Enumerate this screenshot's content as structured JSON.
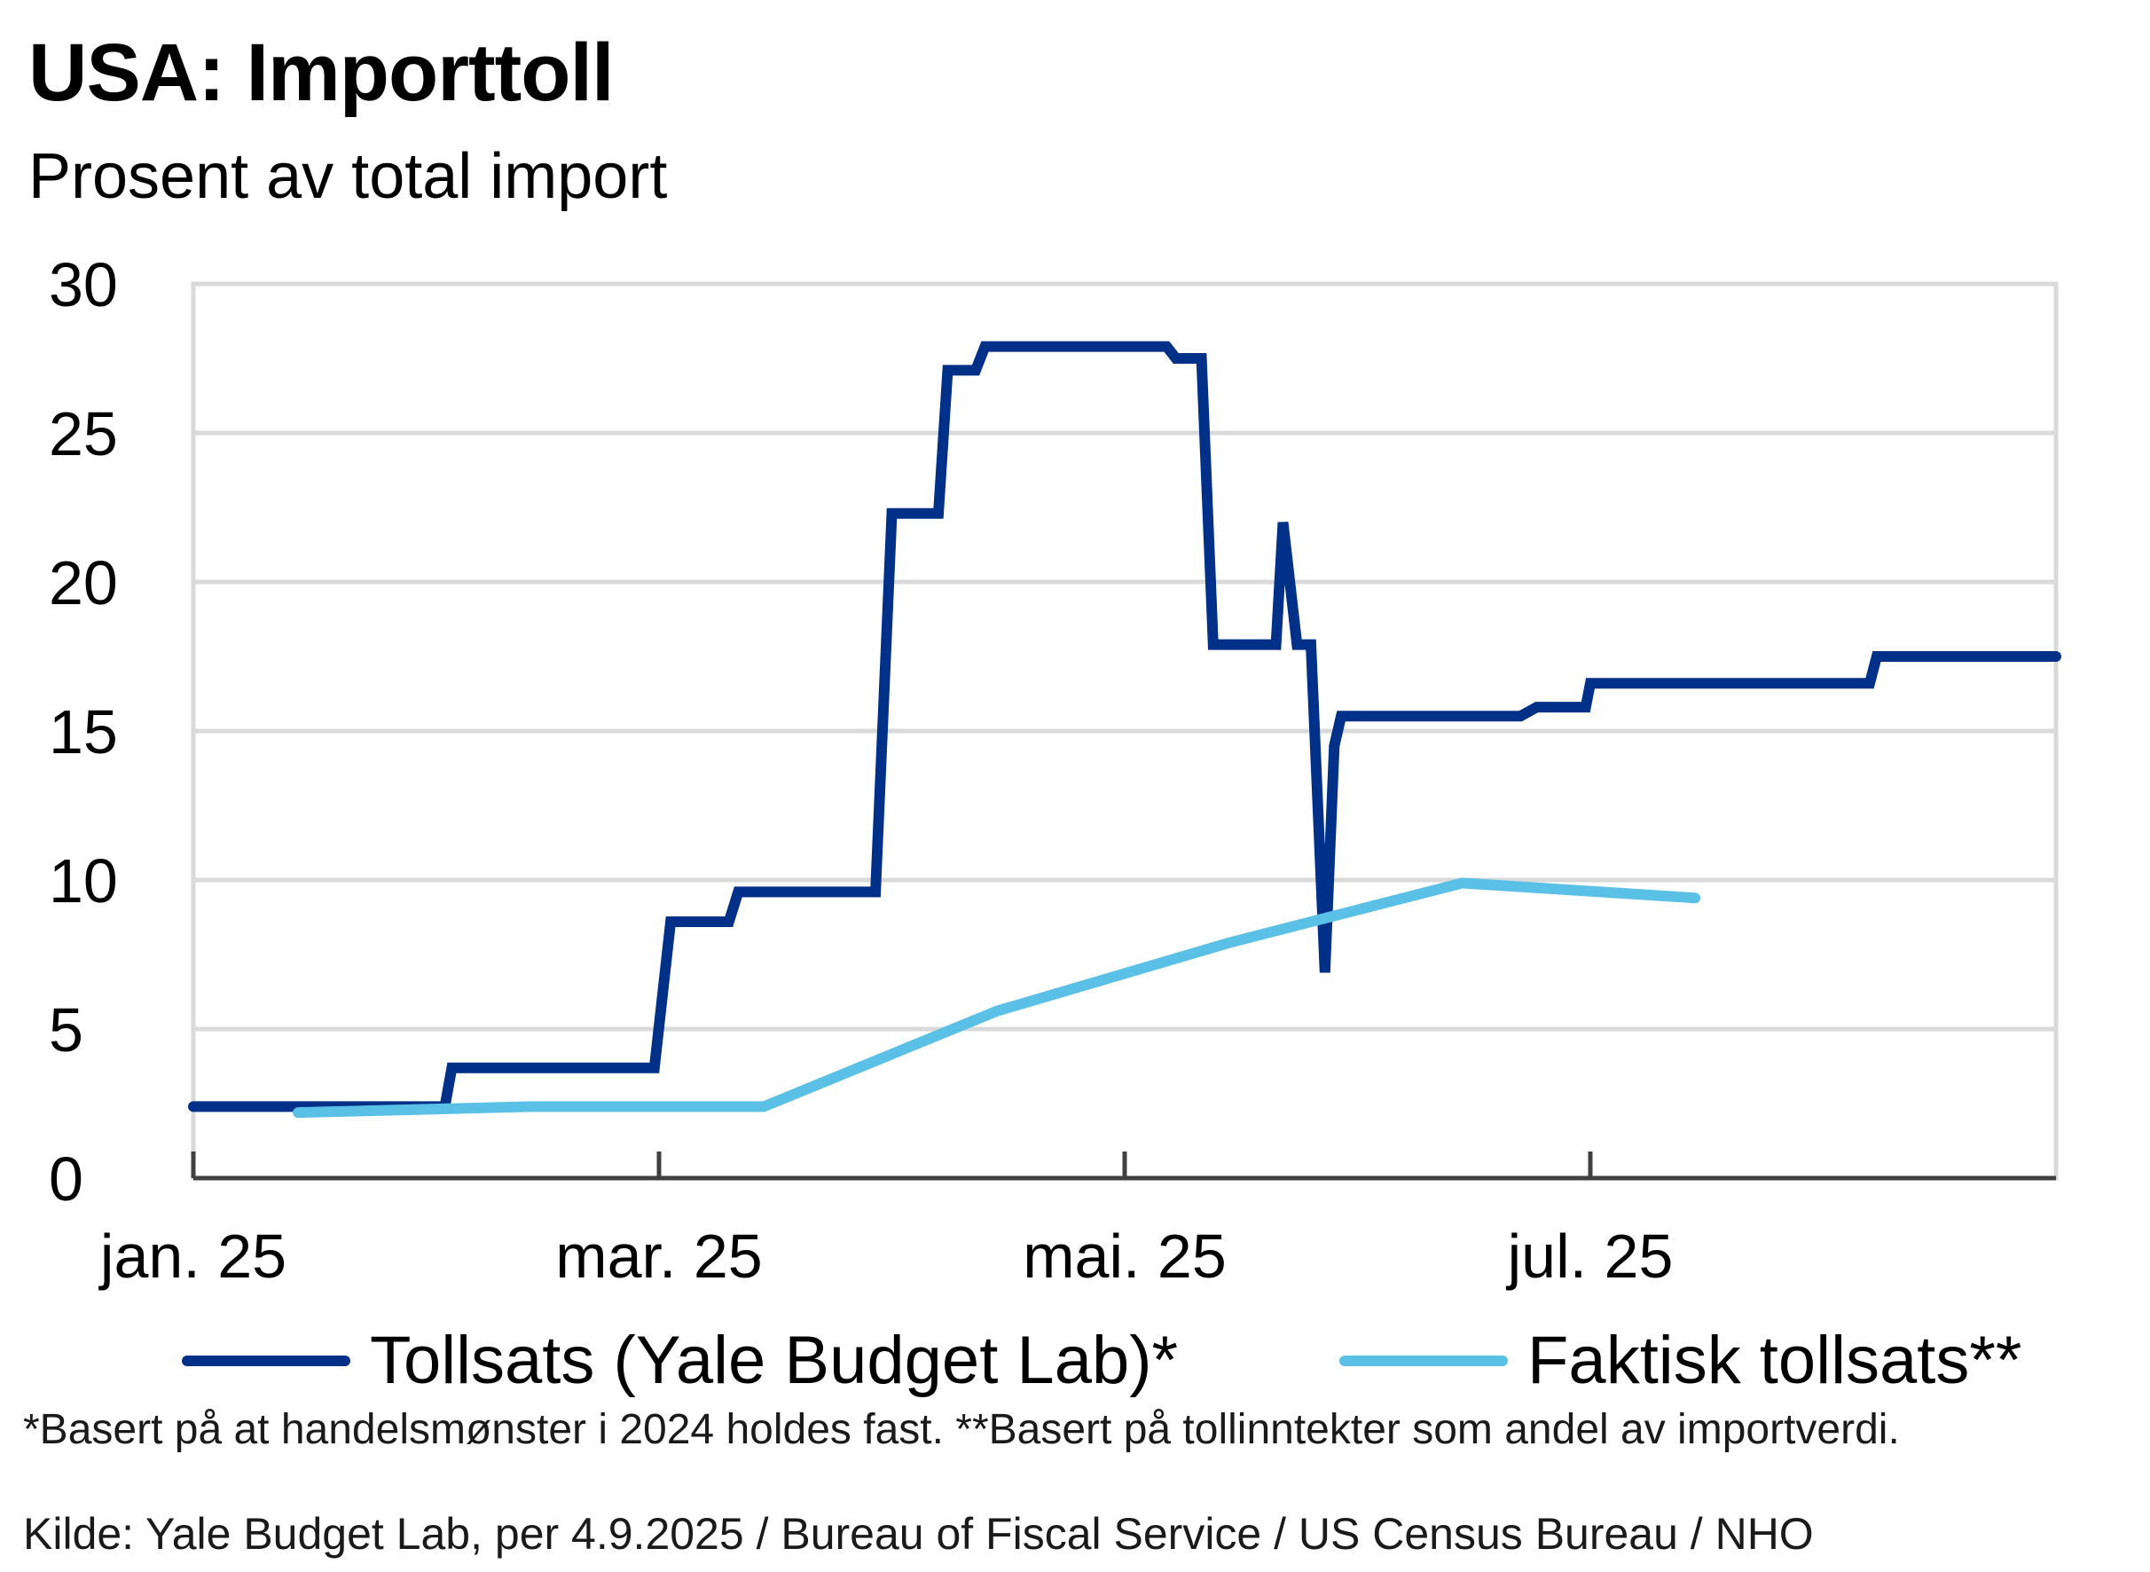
{
  "title": "USA:  Importtoll",
  "subtitle": "Prosent av total import",
  "footnote": "*Basert på at handelsmønster i 2024 holdes fast. **Basert på tollinntekter som andel av importverdi.",
  "source": "Kilde: Yale Budget Lab, per 4.9.2025 / Bureau of Fiscal Service / US Census Bureau / NHO",
  "chart_data": {
    "type": "line",
    "title": "USA:  Importtoll",
    "ylabel": "Prosent av total import",
    "ylim": [
      0,
      30
    ],
    "yticks": [
      "0",
      "5",
      "10",
      "15",
      "20",
      "25",
      "30"
    ],
    "xlim": [
      0,
      8
    ],
    "xticks": [
      {
        "label": "jan. 25",
        "x": 0
      },
      {
        "label": "mar. 25",
        "x": 2
      },
      {
        "label": "mai. 25",
        "x": 4
      },
      {
        "label": "jul. 25",
        "x": 6
      }
    ],
    "grid": true,
    "legend_position": "bottom",
    "series": [
      {
        "name": "Tollsats (Yale Budget Lab)*",
        "color": "#003087",
        "points": [
          [
            0.0,
            2.4
          ],
          [
            1.08,
            2.4
          ],
          [
            1.11,
            3.7
          ],
          [
            1.98,
            3.7
          ],
          [
            2.05,
            8.6
          ],
          [
            2.3,
            8.6
          ],
          [
            2.34,
            9.6
          ],
          [
            2.93,
            9.6
          ],
          [
            3.0,
            22.3
          ],
          [
            3.2,
            22.3
          ],
          [
            3.24,
            27.1
          ],
          [
            3.36,
            27.1
          ],
          [
            3.4,
            27.9
          ],
          [
            4.18,
            27.9
          ],
          [
            4.22,
            27.5
          ],
          [
            4.33,
            27.5
          ],
          [
            4.38,
            17.9
          ],
          [
            4.65,
            17.9
          ],
          [
            4.68,
            22.0
          ],
          [
            4.74,
            17.9
          ],
          [
            4.8,
            17.9
          ],
          [
            4.86,
            6.9
          ],
          [
            4.9,
            14.5
          ],
          [
            4.93,
            15.5
          ],
          [
            5.7,
            15.5
          ],
          [
            5.77,
            15.8
          ],
          [
            5.98,
            15.8
          ],
          [
            6.0,
            16.6
          ],
          [
            7.2,
            16.6
          ],
          [
            7.23,
            17.5
          ],
          [
            8.0,
            17.5
          ]
        ]
      },
      {
        "name": "Faktisk tollsats**",
        "color": "#5bc0e6",
        "points": [
          [
            0.45,
            2.2
          ],
          [
            1.45,
            2.4
          ],
          [
            2.45,
            2.4
          ],
          [
            3.45,
            5.6
          ],
          [
            4.45,
            7.9
          ],
          [
            5.45,
            9.9
          ],
          [
            6.45,
            9.4
          ]
        ]
      }
    ]
  }
}
